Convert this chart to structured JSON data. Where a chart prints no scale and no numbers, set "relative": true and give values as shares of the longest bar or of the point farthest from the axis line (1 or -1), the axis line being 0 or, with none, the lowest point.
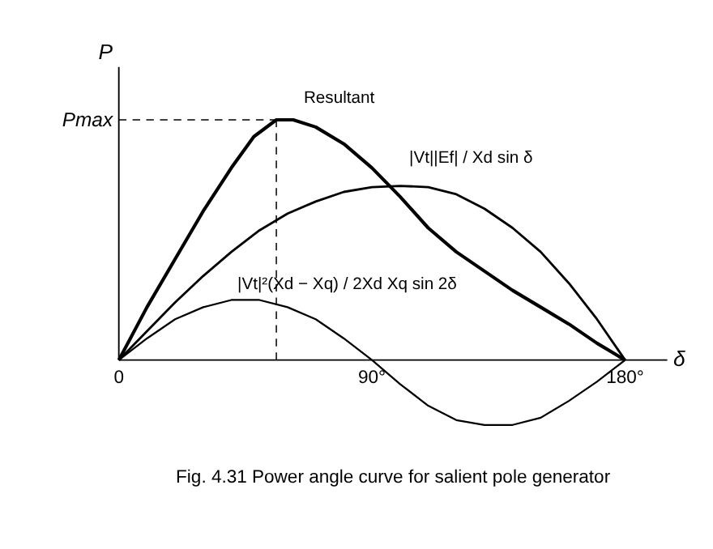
{
  "chart_data": {
    "type": "line",
    "relative": true,
    "title": "Fig. 4.31  Power angle curve for salient pole generator",
    "ylabel": "P",
    "xlabel": "δ",
    "xlim": [
      0,
      195
    ],
    "xticks": [
      {
        "value": 0,
        "label": "0"
      },
      {
        "value": 90,
        "label": "90°"
      },
      {
        "value": 180,
        "label": "180°"
      }
    ],
    "series": [
      {
        "name": "Resultant",
        "color": "#000000",
        "x": [
          0,
          10,
          20,
          30,
          40,
          48,
          56,
          62,
          70,
          80,
          90,
          100,
          110,
          120,
          130,
          140,
          150,
          160,
          170,
          180
        ],
        "values": [
          0,
          0.22,
          0.42,
          0.62,
          0.8,
          0.93,
          1.0,
          1.0,
          0.97,
          0.9,
          0.8,
          0.68,
          0.55,
          0.45,
          0.37,
          0.29,
          0.22,
          0.15,
          0.07,
          0
        ]
      },
      {
        "name": "|Vt||Ef| / Xd  sin δ",
        "color": "#000000",
        "x": [
          0,
          10,
          20,
          30,
          40,
          50,
          60,
          70,
          80,
          90,
          100,
          110,
          120,
          130,
          140,
          150,
          160,
          170,
          180
        ],
        "values": [
          0,
          0.12,
          0.24,
          0.35,
          0.45,
          0.54,
          0.61,
          0.66,
          0.7,
          0.72,
          0.725,
          0.72,
          0.69,
          0.63,
          0.55,
          0.45,
          0.32,
          0.17,
          0
        ]
      },
      {
        "name": "|Vt|²(Xd − Xq) / 2Xd Xq  sin 2δ",
        "color": "#000000",
        "x": [
          0,
          10,
          20,
          30,
          40,
          50,
          60,
          70,
          80,
          90,
          100,
          110,
          120,
          130,
          140,
          150,
          160,
          170,
          180
        ],
        "values": [
          0,
          0.09,
          0.17,
          0.22,
          0.25,
          0.25,
          0.22,
          0.17,
          0.09,
          0,
          -0.1,
          -0.19,
          -0.25,
          -0.27,
          -0.27,
          -0.24,
          -0.17,
          -0.09,
          0
        ]
      }
    ],
    "ref_lines": [
      {
        "axis": "y",
        "value": 1.0,
        "label": "Pmax",
        "line_style": "dashed"
      },
      {
        "axis": "x",
        "value": 56,
        "line_style": "dashed"
      }
    ],
    "line_style": "solid",
    "marker": "none",
    "legend": false
  }
}
